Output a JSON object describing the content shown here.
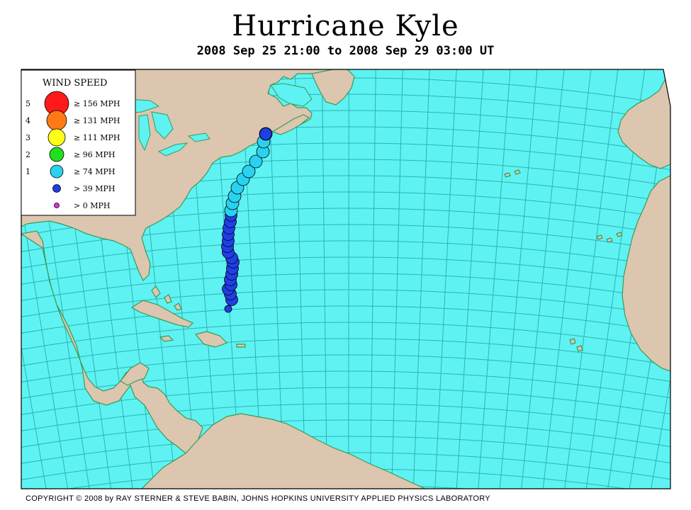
{
  "title": "Hurricane Kyle",
  "subtitle": "2008 Sep 25 21:00 to 2008 Sep 29 03:00 UT",
  "copyright": "COPYRIGHT © 2008 by RAY STERNER & STEVE BABIN, JOHNS HOPKINS UNIVERSITY APPLIED PHYSICS LABORATORY",
  "colors": {
    "ocean": "#5ff2f2",
    "land": "#dcc6b0",
    "grid": "#2db3b3",
    "coast": "#3a9a55",
    "cat5": "#ff1a1a",
    "cat4": "#ff7a14",
    "cat3": "#ffff1a",
    "cat2": "#1ee01e",
    "cat1": "#28d2f0",
    "ts": "#1f3fe6",
    "td": "#e12fe1"
  },
  "legend": {
    "title": "WIND SPEED",
    "entries": [
      {
        "cat": "5",
        "label": "≥ 156 MPH",
        "color": "#ff1a1a",
        "size": "cat5"
      },
      {
        "cat": "4",
        "label": "≥ 131 MPH",
        "color": "#ff7a14",
        "size": "cat4"
      },
      {
        "cat": "3",
        "label": "≥ 111 MPH",
        "color": "#ffff1a",
        "size": "cat3"
      },
      {
        "cat": "2",
        "label": "≥ 96 MPH",
        "color": "#1ee01e",
        "size": "cat2"
      },
      {
        "cat": "1",
        "label": "≥ 74 MPH",
        "color": "#28d2f0",
        "size": "cat1"
      },
      {
        "cat": "",
        "label": "> 39 MPH",
        "color": "#1f3fe6",
        "size": "ts"
      },
      {
        "cat": "",
        "label": "> 0 MPH",
        "color": "#e12fe1",
        "size": "td"
      }
    ]
  },
  "track": [
    {
      "cls": "ts",
      "speed": "> 39 MPH"
    },
    {
      "cls": "ts",
      "speed": "> 39 MPH"
    },
    {
      "cls": "ts",
      "speed": "> 39 MPH"
    },
    {
      "cls": "ts",
      "speed": "> 39 MPH"
    },
    {
      "cls": "ts",
      "speed": "> 39 MPH"
    },
    {
      "cls": "ts",
      "speed": "> 39 MPH"
    },
    {
      "cls": "ts",
      "speed": "> 39 MPH"
    },
    {
      "cls": "ts",
      "speed": "> 39 MPH"
    },
    {
      "cls": "ts",
      "speed": "> 39 MPH"
    },
    {
      "cls": "ts",
      "speed": "> 39 MPH"
    },
    {
      "cls": "ts",
      "speed": "> 39 MPH"
    },
    {
      "cls": "ts",
      "speed": "> 39 MPH"
    },
    {
      "cls": "ts",
      "speed": "> 39 MPH"
    },
    {
      "cls": "ts",
      "speed": "> 39 MPH"
    },
    {
      "cls": "ts",
      "speed": "> 39 MPH"
    },
    {
      "cls": "ts",
      "speed": "> 39 MPH"
    },
    {
      "cls": "ts",
      "speed": "> 39 MPH"
    },
    {
      "cls": "cat1",
      "speed": "≥ 74 MPH"
    },
    {
      "cls": "cat1",
      "speed": "≥ 74 MPH"
    },
    {
      "cls": "cat1",
      "speed": "≥ 74 MPH"
    },
    {
      "cls": "cat1",
      "speed": "≥ 74 MPH"
    },
    {
      "cls": "cat1",
      "speed": "≥ 74 MPH"
    },
    {
      "cls": "cat1",
      "speed": "≥ 74 MPH"
    },
    {
      "cls": "cat1",
      "speed": "≥ 74 MPH"
    },
    {
      "cls": "cat1",
      "speed": "≥ 74 MPH"
    },
    {
      "cls": "cat1",
      "speed": "≥ 74 MPH"
    },
    {
      "cls": "cat1",
      "speed": "≥ 74 MPH"
    },
    {
      "cls": "ts",
      "speed": "> 39 MPH"
    }
  ]
}
